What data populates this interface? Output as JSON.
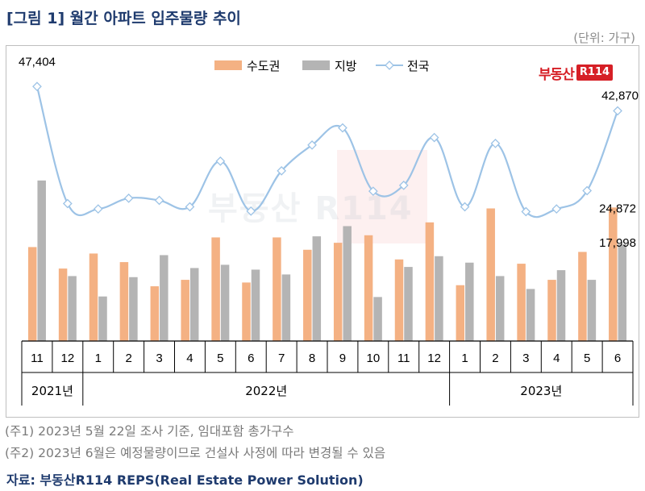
{
  "title": "[그림 1] 월간 아파트 입주물량 추이",
  "unit": "(단위: 가구)",
  "logo": {
    "text": "부동산",
    "box": "R114"
  },
  "watermark": {
    "text": "부동산",
    "box": "R114"
  },
  "notes": [
    "(주1) 2023년 5월 22일 조사 기준, 임대포함 총가구수",
    "(주2) 2023년 6월은 예정물량이므로 건설사 사정에 따라 변경될 수 있음"
  ],
  "source": "자료: 부동산R114 REPS(Real Estate Power Solution)",
  "colors": {
    "capital": "#f4b183",
    "local": "#b4b4b4",
    "national": "#9dc3e6"
  },
  "chart_data": {
    "type": "bar",
    "categories": [
      "11",
      "12",
      "1",
      "2",
      "3",
      "4",
      "5",
      "6",
      "7",
      "8",
      "9",
      "10",
      "11",
      "12",
      "1",
      "2",
      "3",
      "4",
      "5",
      "6"
    ],
    "years": [
      {
        "label": "2021년",
        "start": 0,
        "end": 1
      },
      {
        "label": "2022년",
        "start": 2,
        "end": 13
      },
      {
        "label": "2023년",
        "start": 14,
        "end": 19
      }
    ],
    "legend_position": "top",
    "series": [
      {
        "name": "수도권",
        "type": "bar",
        "values": [
          17500,
          13500,
          16300,
          14700,
          10200,
          11400,
          19300,
          10900,
          19300,
          17000,
          18300,
          19700,
          15200,
          22100,
          10400,
          24700,
          14400,
          11400,
          16600,
          24872
        ]
      },
      {
        "name": "지방",
        "type": "bar",
        "values": [
          29900,
          12100,
          8300,
          11900,
          16000,
          13600,
          14200,
          13300,
          12400,
          19500,
          21400,
          8200,
          13800,
          15800,
          14600,
          12100,
          9700,
          13200,
          11400,
          17998
        ]
      },
      {
        "name": "전국",
        "type": "line",
        "values": [
          47404,
          25600,
          24600,
          26600,
          26200,
          25000,
          33500,
          24200,
          31700,
          36500,
          39700,
          27900,
          29000,
          37900,
          25000,
          36800,
          24100,
          24600,
          28000,
          42870
        ]
      }
    ],
    "data_labels": [
      {
        "series": 2,
        "index": 0,
        "text": "47,404"
      },
      {
        "series": 2,
        "index": 19,
        "text": "42,870"
      },
      {
        "series": 0,
        "index": 19,
        "text": "24,872"
      },
      {
        "series": 1,
        "index": 19,
        "text": "17,998"
      }
    ],
    "ylim": [
      0,
      50000
    ],
    "grid": false
  }
}
